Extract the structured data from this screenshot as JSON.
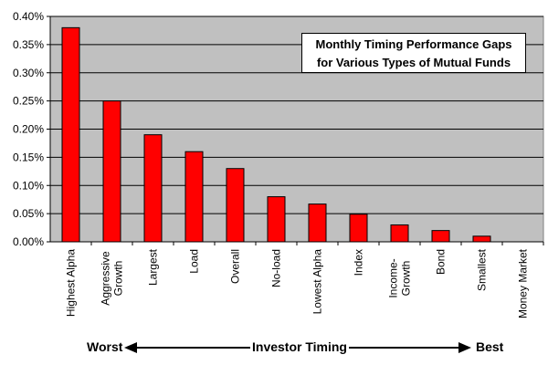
{
  "chart_data": {
    "type": "bar",
    "title_lines": [
      "Monthly Timing Performance Gaps",
      "for Various Types of Mutual Funds"
    ],
    "categories": [
      "Highest Alpha",
      "Aggressive Growth",
      "Largest",
      "Load",
      "Overall",
      "No-load",
      "Lowest Alpha",
      "Index",
      "Income-Growth",
      "Bond",
      "Smallest",
      "Money Market"
    ],
    "category_label_lines": [
      [
        "Highest Alpha"
      ],
      [
        "Aggressive",
        "Growth"
      ],
      [
        "Largest"
      ],
      [
        "Load"
      ],
      [
        "Overall"
      ],
      [
        "No-load"
      ],
      [
        "Lowest Alpha"
      ],
      [
        "Index"
      ],
      [
        "Income-",
        "Growth"
      ],
      [
        "Bond"
      ],
      [
        "Smallest"
      ],
      [
        "Money Market"
      ]
    ],
    "values": [
      0.38,
      0.25,
      0.19,
      0.16,
      0.13,
      0.08,
      0.067,
      0.049,
      0.03,
      0.02,
      0.01,
      0.0
    ],
    "ylim": [
      0,
      0.4
    ],
    "yticks": [
      0.0,
      0.05,
      0.1,
      0.15,
      0.2,
      0.25,
      0.3,
      0.35,
      0.4
    ],
    "ytick_labels": [
      "0.00%",
      "0.05%",
      "0.10%",
      "0.15%",
      "0.20%",
      "0.25%",
      "0.30%",
      "0.35%",
      "0.40%"
    ],
    "grid": true,
    "bar_color": "#ff0000",
    "plot_background": "#c0c0c0",
    "xlabel_left": "Worst",
    "xlabel_center": "Investor Timing",
    "xlabel_right": "Best"
  }
}
